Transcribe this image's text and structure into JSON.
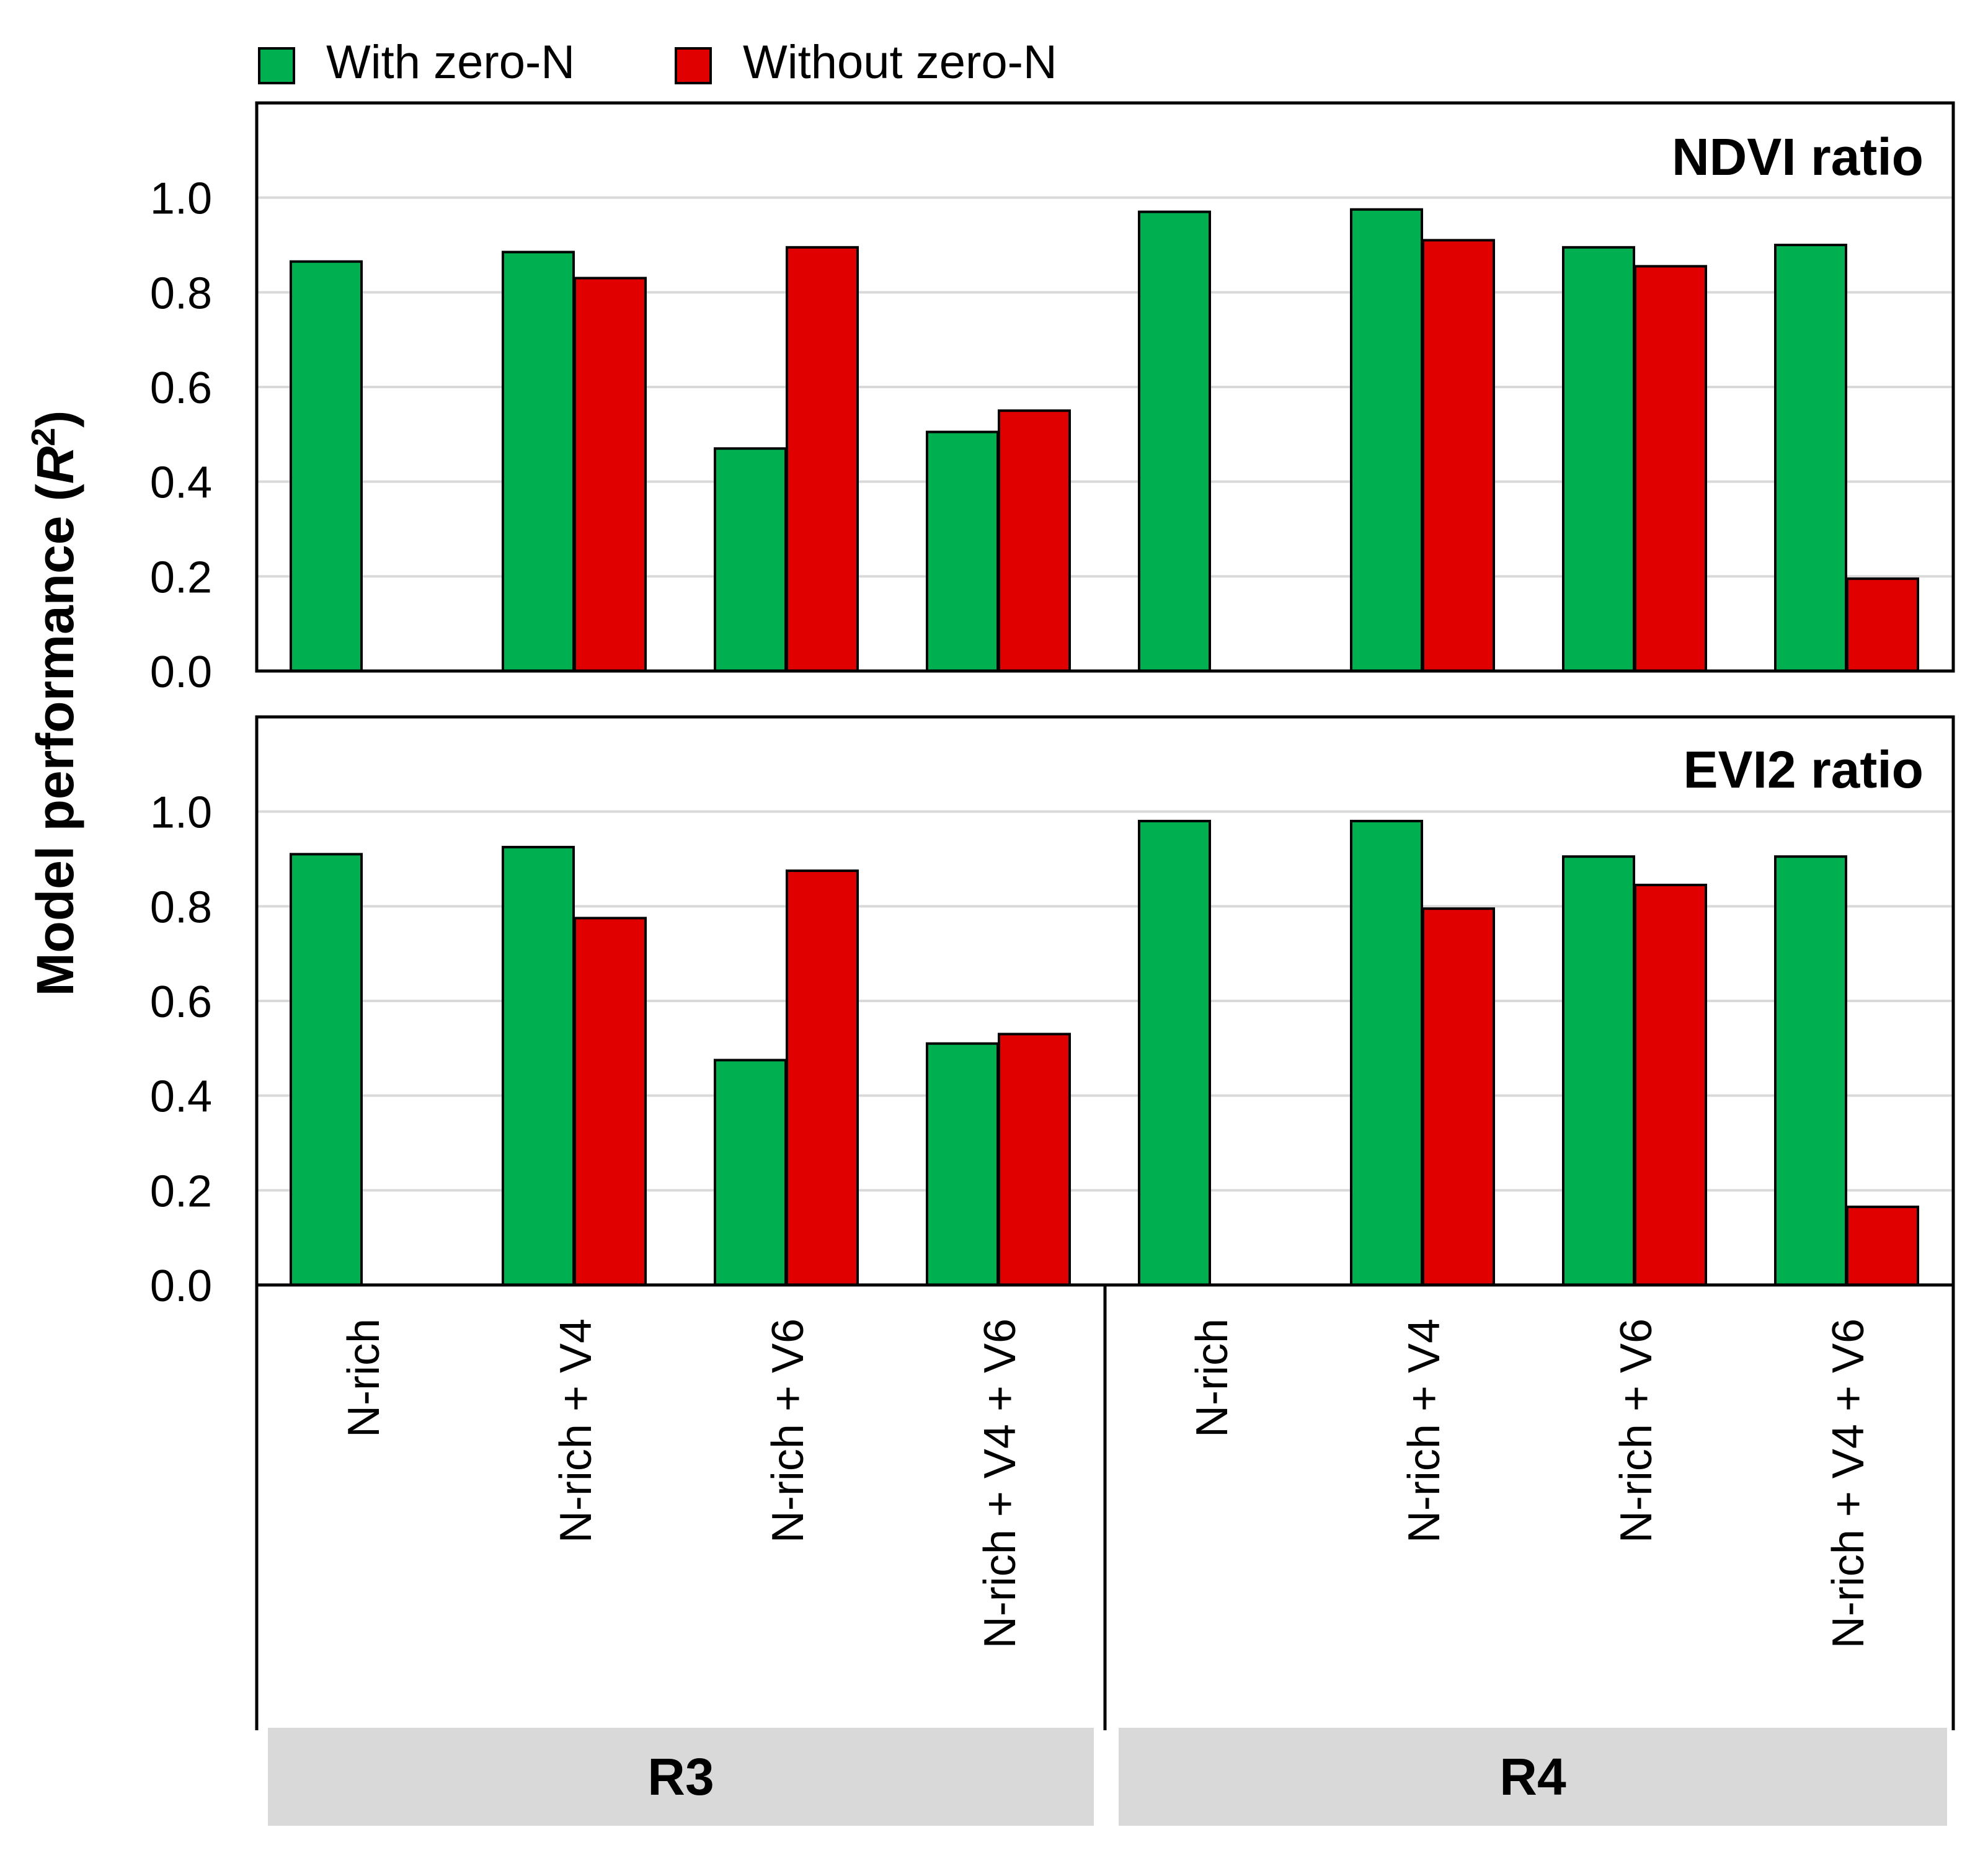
{
  "chart_data": {
    "type": "bar",
    "ylabel": "Model performance (",
    "ylabel_italic": "R",
    "ylabel_sup": "2",
    "ylabel_close": ")",
    "ylim": [
      0,
      1.2
    ],
    "yticks": [
      "0.0",
      "0.2",
      "0.4",
      "0.6",
      "0.8",
      "1.0"
    ],
    "ytick_values": [
      0,
      0.2,
      0.4,
      0.6,
      0.8,
      1.0
    ],
    "grid": true,
    "legend_position": "top-left",
    "legend": [
      {
        "name": "With zero-N",
        "color": "#00b050"
      },
      {
        "name": "Without zero-N",
        "color": "#e00000"
      }
    ],
    "categories": [
      "N-rich",
      "N-rich + V4",
      "N-rich + V6",
      "N-rich + V4 + V6",
      "N-rich",
      "N-rich + V4",
      "N-rich + V6",
      "N-rich + V4 + V6"
    ],
    "groups": [
      {
        "label": "R3",
        "count": 4
      },
      {
        "label": "R4",
        "count": 4
      }
    ],
    "panels": [
      {
        "title": "NDVI ratio",
        "series": [
          {
            "name": "With zero-N",
            "values": [
              0.865,
              0.885,
              0.47,
              0.505,
              0.97,
              0.975,
              0.895,
              0.9
            ]
          },
          {
            "name": "Without zero-N",
            "values": [
              null,
              0.83,
              0.895,
              0.55,
              null,
              0.91,
              0.855,
              0.195
            ]
          }
        ]
      },
      {
        "title": "EVI2 ratio",
        "series": [
          {
            "name": "With zero-N",
            "values": [
              0.91,
              0.925,
              0.475,
              0.51,
              0.98,
              0.98,
              0.905,
              0.905
            ]
          },
          {
            "name": "Without zero-N",
            "values": [
              null,
              0.775,
              0.875,
              0.53,
              null,
              0.795,
              0.845,
              0.165
            ]
          }
        ]
      }
    ]
  }
}
